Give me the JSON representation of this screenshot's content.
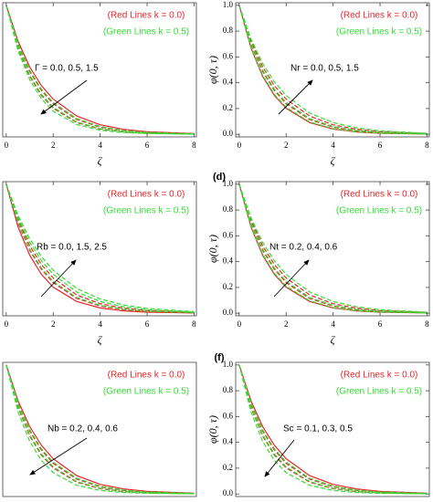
{
  "chart_data": [
    {
      "type": "line",
      "legend": [
        "(Red Lines k = 0.0)",
        "(Green Lines k = 0.5)"
      ],
      "annotation": "Γ = 0.0, 0.5, 1.5",
      "xlabel": "ζ",
      "x": [
        0,
        0.5,
        1,
        1.5,
        2,
        3,
        4,
        5,
        6,
        8
      ],
      "xlim": [
        -0.15,
        8.1
      ],
      "ylim": [
        -0.02,
        1.02
      ],
      "xticks": [
        0,
        2,
        4,
        6,
        8
      ],
      "series": [
        {
          "color": "#e8242a",
          "dash": false,
          "values": [
            1,
            0.723,
            0.522,
            0.377,
            0.273,
            0.142,
            0.074,
            0.039,
            0.02,
            0.006
          ]
        },
        {
          "color": "#e8242a",
          "dash": true,
          "values": [
            1,
            0.698,
            0.487,
            0.34,
            0.237,
            0.115,
            0.056,
            0.027,
            0.013,
            0.003
          ]
        },
        {
          "color": "#e8242a",
          "dash": true,
          "values": [
            1,
            0.67,
            0.449,
            0.301,
            0.202,
            0.091,
            0.041,
            0.018,
            0.008,
            0.002
          ]
        },
        {
          "color": "#33dd33",
          "dash": true,
          "values": [
            1,
            0.705,
            0.497,
            0.35,
            0.247,
            0.122,
            0.061,
            0.03,
            0.015,
            0.004
          ]
        },
        {
          "color": "#33dd33",
          "dash": true,
          "values": [
            1,
            0.677,
            0.458,
            0.31,
            0.21,
            0.096,
            0.044,
            0.02,
            0.009,
            0.002
          ]
        },
        {
          "color": "#33dd33",
          "dash": true,
          "values": [
            1,
            0.65,
            0.423,
            0.275,
            0.179,
            0.076,
            0.032,
            0.014,
            0.006,
            0.001
          ]
        }
      ]
    },
    {
      "type": "line",
      "legend": [
        "(Red Lines k = 0.0)",
        "(Green Lines k = 0.5)"
      ],
      "annotation": "Nr = 0.0, 0.5, 1.5",
      "xlabel": "ζ",
      "ylabel": "φ(0, τ)",
      "x": [
        0,
        0.5,
        1,
        1.5,
        2,
        3,
        4,
        5,
        6,
        8
      ],
      "xlim": [
        -0.15,
        8.1
      ],
      "ylim": [
        -0.02,
        1.02
      ],
      "xticks": [
        0,
        2,
        4,
        6,
        8
      ],
      "yticks": [
        {
          "value": 0,
          "label": "0.0"
        },
        0.2,
        0.4,
        0.6,
        0.8,
        {
          "value": 1,
          "label": "1.0"
        }
      ],
      "series": [
        {
          "color": "#e8242a",
          "dash": false,
          "values": [
            1,
            0.67,
            0.449,
            0.301,
            0.202,
            0.091,
            0.041,
            0.018,
            0.008,
            0.002
          ]
        },
        {
          "color": "#e8242a",
          "dash": true,
          "values": [
            1,
            0.698,
            0.487,
            0.34,
            0.237,
            0.115,
            0.056,
            0.027,
            0.013,
            0.003
          ]
        },
        {
          "color": "#e8242a",
          "dash": true,
          "values": [
            1,
            0.723,
            0.522,
            0.377,
            0.273,
            0.142,
            0.074,
            0.039,
            0.02,
            0.006
          ]
        },
        {
          "color": "#33dd33",
          "dash": true,
          "values": [
            1,
            0.677,
            0.458,
            0.31,
            0.21,
            0.096,
            0.044,
            0.02,
            0.009,
            0.002
          ]
        },
        {
          "color": "#33dd33",
          "dash": true,
          "values": [
            1,
            0.705,
            0.497,
            0.35,
            0.247,
            0.122,
            0.061,
            0.03,
            0.015,
            0.004
          ]
        },
        {
          "color": "#33dd33",
          "dash": true,
          "values": [
            1,
            0.741,
            0.549,
            0.407,
            0.301,
            0.165,
            0.091,
            0.05,
            0.027,
            0.008
          ]
        }
      ]
    },
    {
      "type": "line",
      "legend": [
        "(Red Lines k = 0.0)",
        "(Green Lines k = 0.5)"
      ],
      "annotation": "Rb = 0.0, 1.5, 2.5",
      "xlabel": "ζ",
      "x": [
        0,
        0.5,
        1,
        1.5,
        2,
        3,
        4,
        5,
        6,
        8
      ],
      "xlim": [
        -0.15,
        8.1
      ],
      "ylim": [
        -0.02,
        1.02
      ],
      "xticks": [
        0,
        2,
        4,
        6,
        8
      ],
      "series": [
        {
          "color": "#e8242a",
          "dash": false,
          "values": [
            1,
            0.67,
            0.449,
            0.301,
            0.202,
            0.091,
            0.041,
            0.018,
            0.008,
            0.002
          ]
        },
        {
          "color": "#e8242a",
          "dash": true,
          "values": [
            1,
            0.698,
            0.487,
            0.34,
            0.237,
            0.115,
            0.056,
            0.027,
            0.013,
            0.003
          ]
        },
        {
          "color": "#e8242a",
          "dash": true,
          "values": [
            1,
            0.723,
            0.522,
            0.377,
            0.273,
            0.142,
            0.074,
            0.039,
            0.02,
            0.006
          ]
        },
        {
          "color": "#33dd33",
          "dash": true,
          "values": [
            1,
            0.705,
            0.497,
            0.35,
            0.247,
            0.122,
            0.061,
            0.03,
            0.015,
            0.004
          ]
        },
        {
          "color": "#33dd33",
          "dash": true,
          "values": [
            1,
            0.741,
            0.549,
            0.407,
            0.301,
            0.165,
            0.091,
            0.05,
            0.027,
            0.008
          ]
        },
        {
          "color": "#33dd33",
          "dash": true,
          "values": [
            1,
            0.76,
            0.577,
            0.438,
            0.333,
            0.192,
            0.111,
            0.064,
            0.037,
            0.012
          ]
        }
      ]
    },
    {
      "type": "line",
      "panel_label": "(d)",
      "legend": [
        "(Red Lines k = 0.0)",
        "(Green Lines k = 0.5)"
      ],
      "annotation": "Nt = 0.2, 0.4, 0.6",
      "xlabel": "ζ",
      "ylabel": "φ(0, τ)",
      "x": [
        0,
        0.5,
        1,
        1.5,
        2,
        3,
        4,
        5,
        6,
        8
      ],
      "xlim": [
        -0.15,
        8.1
      ],
      "ylim": [
        -0.02,
        1.02
      ],
      "xticks": [
        0,
        2,
        4,
        6,
        8
      ],
      "yticks": [
        {
          "value": 0,
          "label": "0.0"
        },
        0.2,
        0.4,
        0.6,
        0.8,
        {
          "value": 1,
          "label": "1.0"
        }
      ],
      "series": [
        {
          "color": "#e8242a",
          "dash": false,
          "values": [
            1,
            0.67,
            0.449,
            0.301,
            0.202,
            0.091,
            0.041,
            0.018,
            0.008,
            0.002
          ]
        },
        {
          "color": "#e8242a",
          "dash": true,
          "values": [
            1,
            0.698,
            0.487,
            0.34,
            0.237,
            0.115,
            0.056,
            0.027,
            0.013,
            0.003
          ]
        },
        {
          "color": "#e8242a",
          "dash": true,
          "values": [
            1,
            0.723,
            0.522,
            0.377,
            0.273,
            0.142,
            0.074,
            0.039,
            0.02,
            0.006
          ]
        },
        {
          "color": "#33dd33",
          "dash": true,
          "values": [
            1,
            0.677,
            0.458,
            0.31,
            0.21,
            0.096,
            0.044,
            0.02,
            0.009,
            0.002
          ]
        },
        {
          "color": "#33dd33",
          "dash": true,
          "values": [
            1,
            0.705,
            0.497,
            0.35,
            0.247,
            0.122,
            0.061,
            0.03,
            0.015,
            0.004
          ]
        },
        {
          "color": "#33dd33",
          "dash": true,
          "values": [
            1,
            0.741,
            0.549,
            0.407,
            0.301,
            0.165,
            0.091,
            0.05,
            0.027,
            0.008
          ]
        }
      ]
    },
    {
      "type": "line",
      "legend": [
        "(Red Lines k = 0.0)",
        "(Green Lines k = 0.5)"
      ],
      "annotation": "Nb = 0.2, 0.4, 0.6",
      "x": [
        0,
        0.5,
        1,
        1.5,
        2,
        3,
        4,
        5,
        6,
        8
      ],
      "xlim": [
        -0.15,
        8.1
      ],
      "ylim": [
        -0.02,
        1.02
      ],
      "series": [
        {
          "color": "#e8242a",
          "dash": false,
          "values": [
            1,
            0.723,
            0.522,
            0.377,
            0.273,
            0.142,
            0.074,
            0.039,
            0.02,
            0.006
          ]
        },
        {
          "color": "#e8242a",
          "dash": true,
          "values": [
            1,
            0.698,
            0.487,
            0.34,
            0.237,
            0.115,
            0.056,
            0.027,
            0.013,
            0.003
          ]
        },
        {
          "color": "#e8242a",
          "dash": true,
          "values": [
            1,
            0.67,
            0.449,
            0.301,
            0.202,
            0.091,
            0.041,
            0.018,
            0.008,
            0.002
          ]
        },
        {
          "color": "#33dd33",
          "dash": true,
          "values": [
            1,
            0.705,
            0.497,
            0.35,
            0.247,
            0.122,
            0.061,
            0.03,
            0.015,
            0.004
          ]
        },
        {
          "color": "#33dd33",
          "dash": true,
          "values": [
            1,
            0.677,
            0.458,
            0.31,
            0.21,
            0.096,
            0.044,
            0.02,
            0.009,
            0.002
          ]
        },
        {
          "color": "#33dd33",
          "dash": true,
          "values": [
            1,
            0.638,
            0.407,
            0.259,
            0.165,
            0.067,
            0.027,
            0.011,
            0.005,
            0.001
          ]
        }
      ]
    },
    {
      "type": "line",
      "panel_label": "(f)",
      "legend": [
        "(Red Lines k = 0.0)",
        "(Green Lines k = 0.5)"
      ],
      "annotation": "Sc = 0.1, 0.3, 0.5",
      "ylabel": "φ(0, τ)",
      "x": [
        0,
        0.5,
        1,
        1.5,
        2,
        3,
        4,
        5,
        6,
        8
      ],
      "xlim": [
        -0.15,
        8.1
      ],
      "ylim": [
        -0.02,
        1.02
      ],
      "yticks": [
        {
          "value": 0,
          "label": "0.0"
        },
        0.2,
        0.4,
        0.6,
        0.8,
        {
          "value": 1,
          "label": "1.0"
        }
      ],
      "series": [
        {
          "color": "#e8242a",
          "dash": false,
          "values": [
            1,
            0.723,
            0.522,
            0.377,
            0.273,
            0.142,
            0.074,
            0.039,
            0.02,
            0.006
          ]
        },
        {
          "color": "#e8242a",
          "dash": true,
          "values": [
            1,
            0.698,
            0.487,
            0.34,
            0.237,
            0.115,
            0.056,
            0.027,
            0.013,
            0.003
          ]
        },
        {
          "color": "#e8242a",
          "dash": true,
          "values": [
            1,
            0.67,
            0.449,
            0.301,
            0.202,
            0.091,
            0.041,
            0.018,
            0.008,
            0.002
          ]
        },
        {
          "color": "#33dd33",
          "dash": true,
          "values": [
            1,
            0.705,
            0.497,
            0.35,
            0.247,
            0.122,
            0.061,
            0.03,
            0.015,
            0.004
          ]
        },
        {
          "color": "#33dd33",
          "dash": true,
          "values": [
            1,
            0.677,
            0.458,
            0.31,
            0.21,
            0.096,
            0.044,
            0.02,
            0.009,
            0.002
          ]
        },
        {
          "color": "#33dd33",
          "dash": true,
          "values": [
            1,
            0.638,
            0.407,
            0.259,
            0.165,
            0.067,
            0.027,
            0.011,
            0.005,
            0.001
          ]
        }
      ]
    }
  ]
}
